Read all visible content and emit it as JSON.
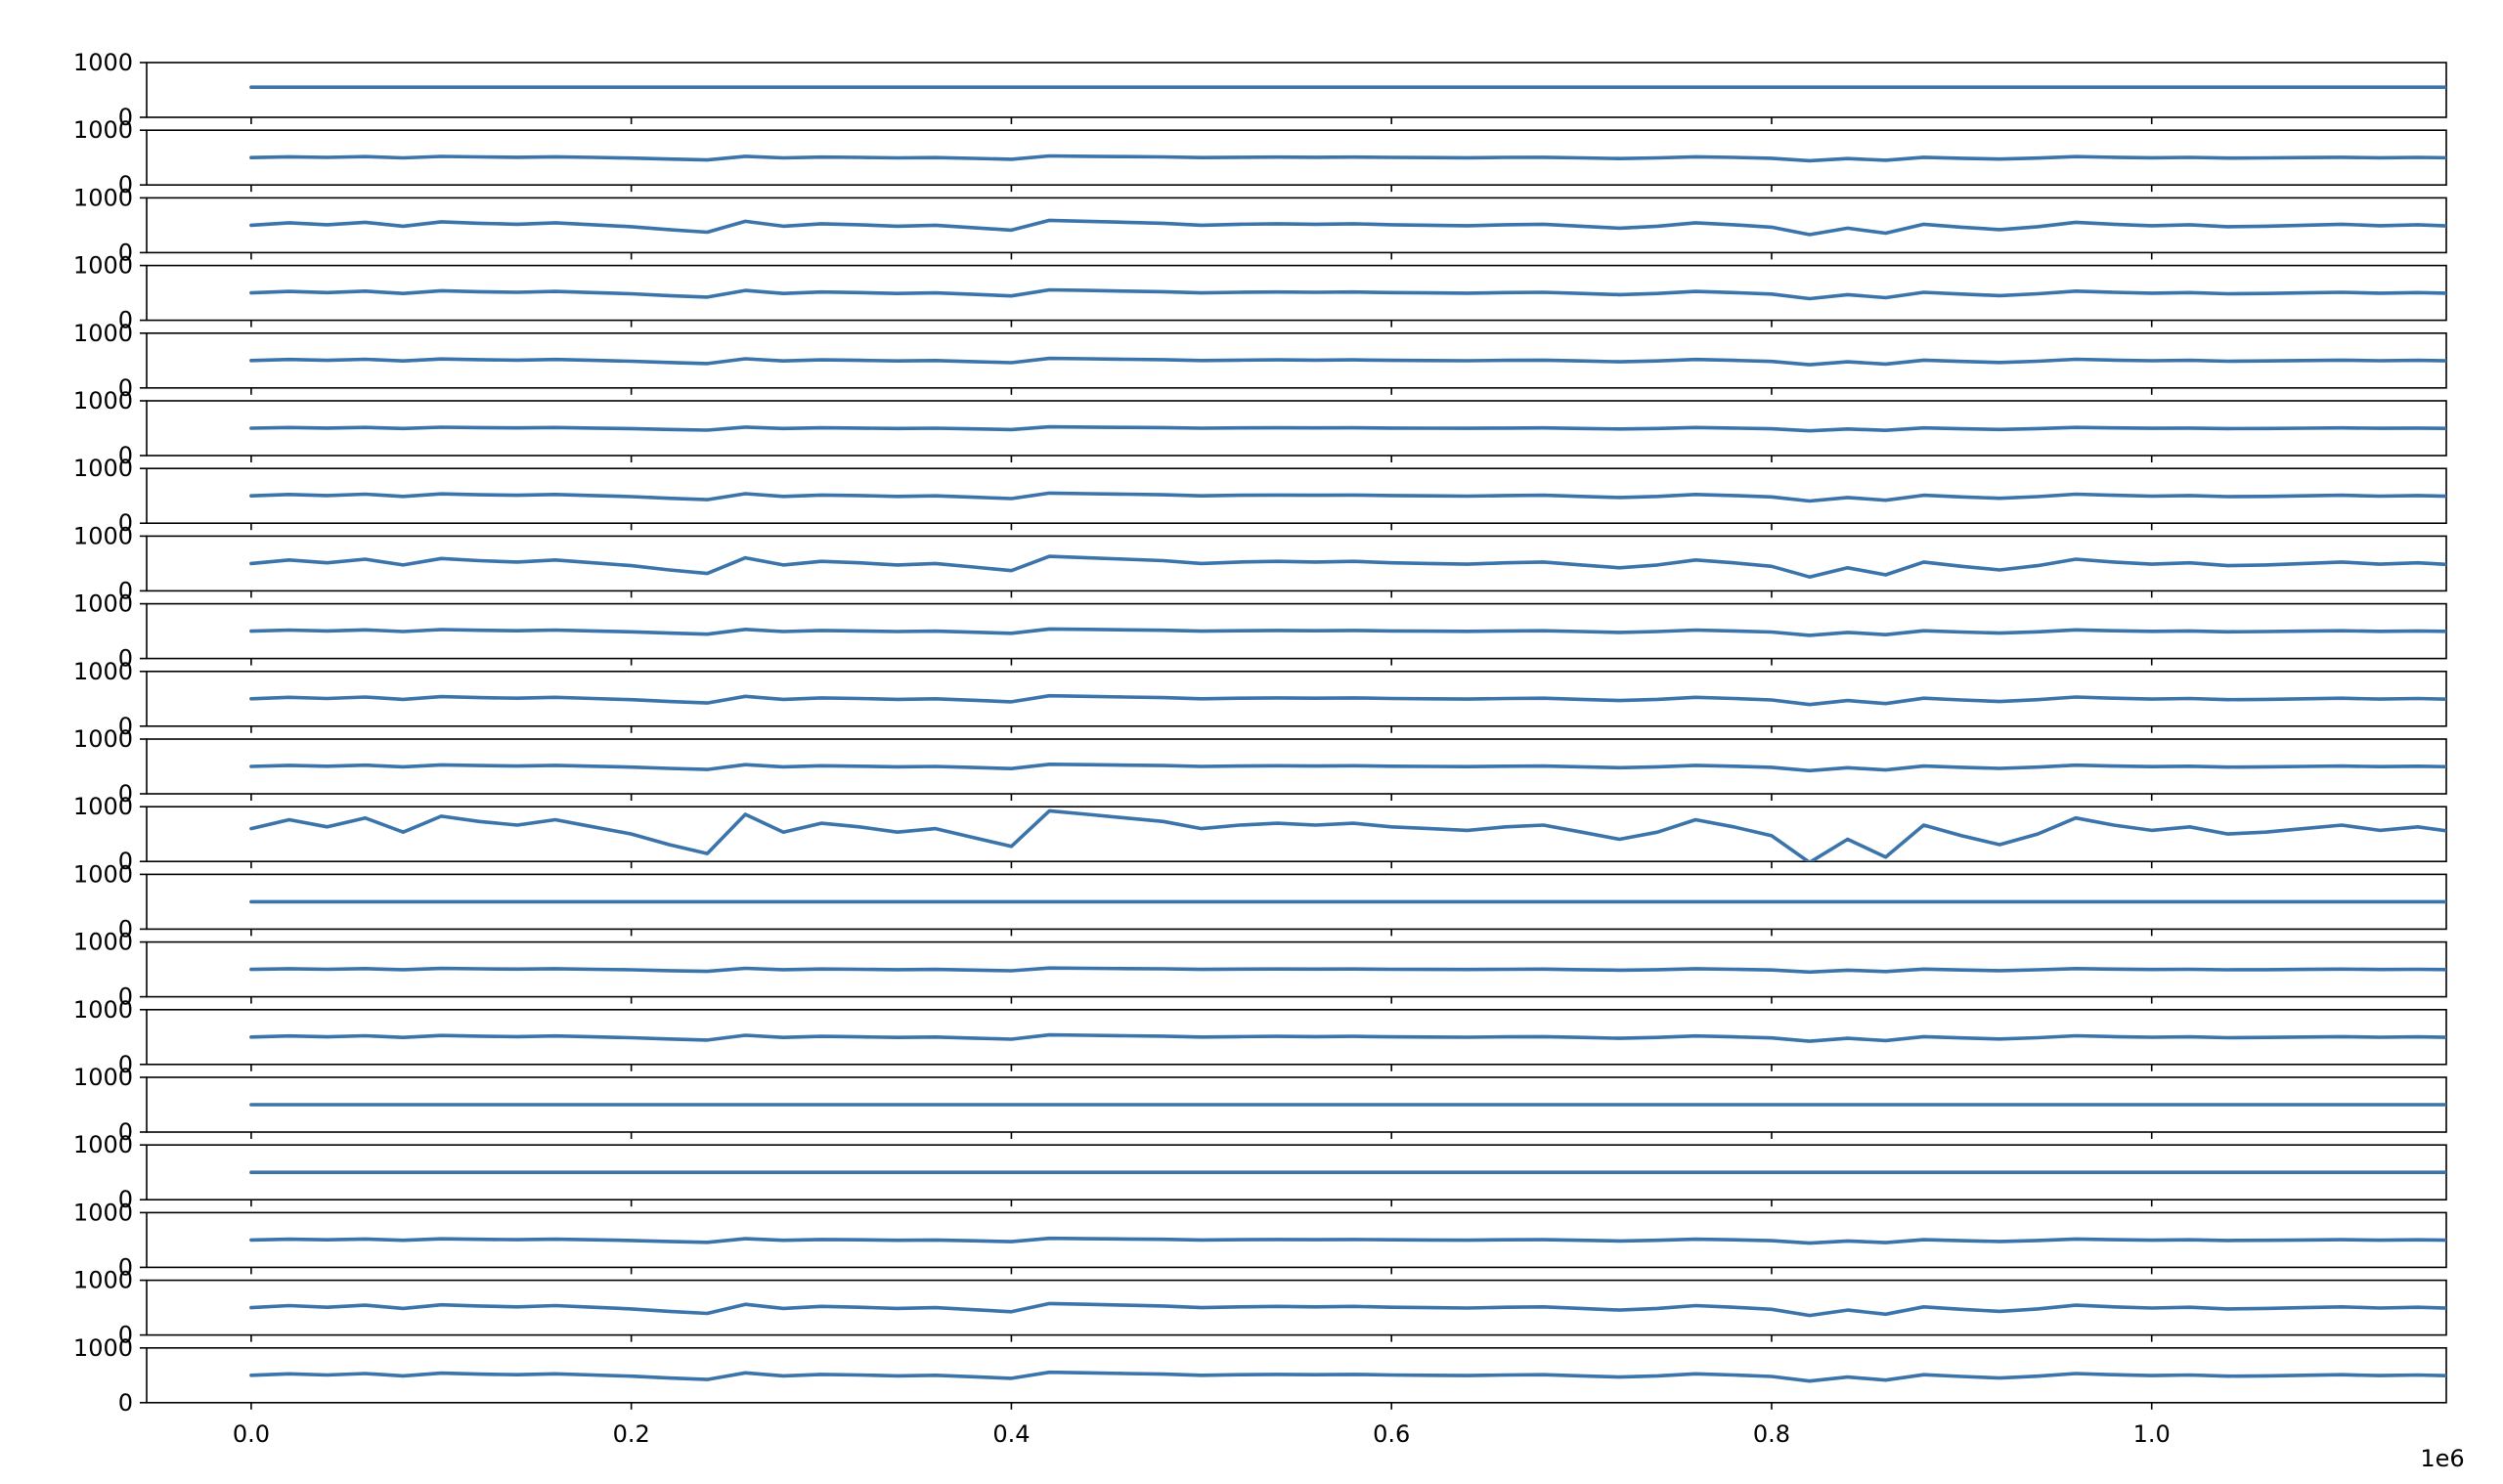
{
  "chart_data": {
    "type": "line",
    "layout": "stacked-panels",
    "panel_count": 20,
    "shared_x": true,
    "x_offset_label": "1e6",
    "xlim": [
      -55000,
      1155000
    ],
    "x_ticks": [
      {
        "value": 0,
        "label": "0.0"
      },
      {
        "value": 200000,
        "label": "0.2"
      },
      {
        "value": 400000,
        "label": "0.4"
      },
      {
        "value": 600000,
        "label": "0.6"
      },
      {
        "value": 800000,
        "label": "0.8"
      },
      {
        "value": 1000000,
        "label": "1.0"
      }
    ],
    "ylim": [
      0,
      1000
    ],
    "y_ticks": [
      {
        "value": 1000,
        "label": "1000"
      },
      {
        "value": 0,
        "label": "0"
      }
    ],
    "grid": false,
    "legend": "none",
    "line_color": "#3a74ab",
    "x_range": [
      0,
      1100000
    ],
    "sample_step": 20000,
    "panels": [
      {
        "level": 550,
        "amplitude": 0
      },
      {
        "level": 500,
        "amplitude": 60
      },
      {
        "level": 500,
        "amplitude": 180
      },
      {
        "level": 500,
        "amplitude": 110
      },
      {
        "level": 500,
        "amplitude": 80
      },
      {
        "level": 500,
        "amplitude": 50
      },
      {
        "level": 500,
        "amplitude": 100
      },
      {
        "level": 500,
        "amplitude": 260
      },
      {
        "level": 500,
        "amplitude": 80
      },
      {
        "level": 500,
        "amplitude": 110
      },
      {
        "level": 500,
        "amplitude": 80
      },
      {
        "level": 600,
        "amplitude": 650
      },
      {
        "level": 500,
        "amplitude": 0
      },
      {
        "level": 500,
        "amplitude": 50
      },
      {
        "level": 500,
        "amplitude": 80
      },
      {
        "level": 500,
        "amplitude": 0
      },
      {
        "level": 500,
        "amplitude": 0
      },
      {
        "level": 500,
        "amplitude": 60
      },
      {
        "level": 500,
        "amplitude": 150
      },
      {
        "level": 500,
        "amplitude": 110
      }
    ],
    "base_profile": [
      0,
      0.25,
      0.05,
      0.3,
      -0.1,
      0.35,
      0.2,
      0.1,
      0.25,
      0.05,
      -0.15,
      -0.45,
      -0.7,
      0.4,
      -0.1,
      0.15,
      0.05,
      -0.1,
      0,
      -0.25,
      -0.5,
      0.5,
      0.4,
      0.3,
      0.2,
      0,
      0.1,
      0.15,
      0.1,
      0.15,
      0.05,
      0,
      -0.05,
      0.05,
      0.1,
      -0.1,
      -0.3,
      -0.1,
      0.25,
      0.05,
      -0.2,
      -0.95,
      -0.3,
      -0.8,
      0.1,
      -0.2,
      -0.45,
      -0.15,
      0.3,
      0.1,
      -0.05,
      0.05,
      -0.15,
      -0.1,
      0,
      0.1,
      -0.05,
      0.05,
      -0.1,
      0.05,
      -0.15,
      0.1,
      0.2,
      0,
      0.05,
      0.1
    ]
  }
}
